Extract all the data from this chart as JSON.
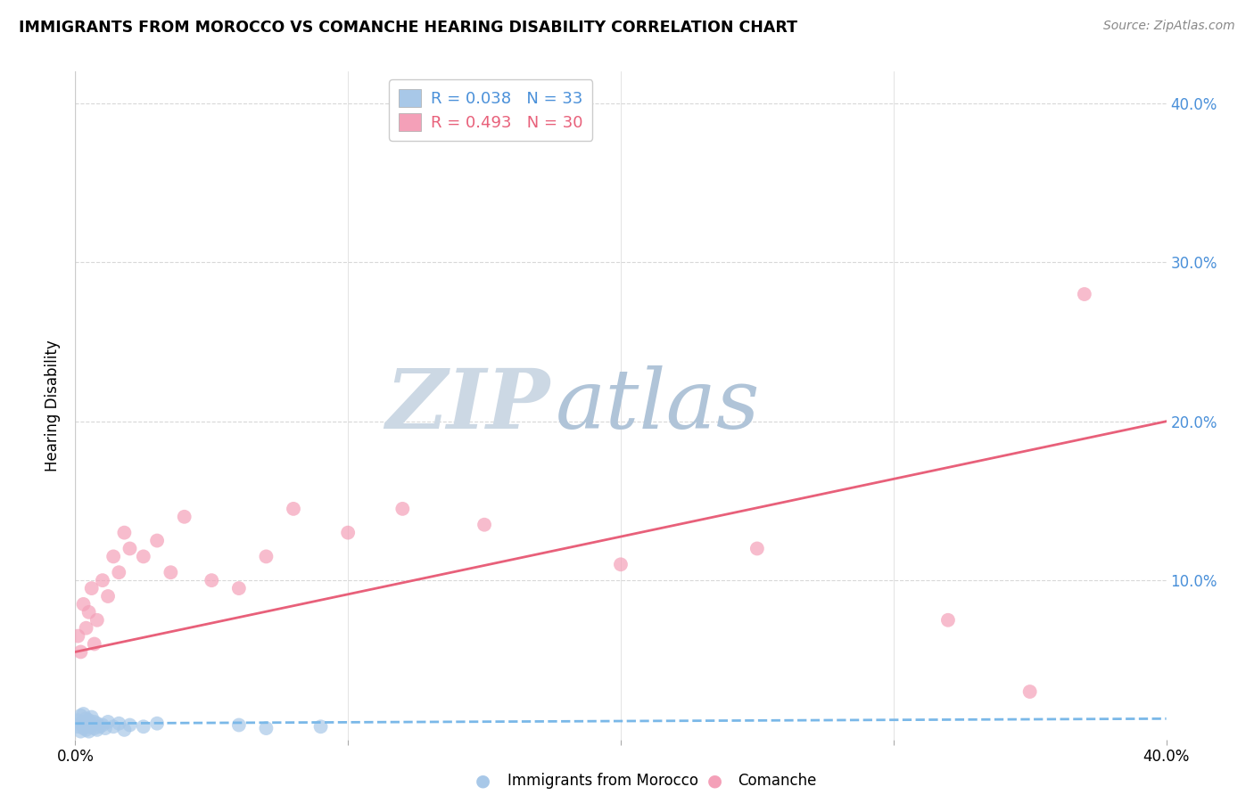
{
  "title": "IMMIGRANTS FROM MOROCCO VS COMANCHE HEARING DISABILITY CORRELATION CHART",
  "source": "Source: ZipAtlas.com",
  "ylabel": "Hearing Disability",
  "xlim": [
    0.0,
    0.4
  ],
  "ylim": [
    0.0,
    0.42
  ],
  "legend_r1": "R = 0.038",
  "legend_n1": "N = 33",
  "legend_r2": "R = 0.493",
  "legend_n2": "N = 30",
  "blue_color": "#a8c8e8",
  "pink_color": "#f4a0b8",
  "blue_line_color": "#4a90d9",
  "pink_line_color": "#e8607a",
  "blue_dashed_color": "#7ab8e8",
  "watermark_zip_color": "#c8d8e8",
  "watermark_atlas_color": "#b0c8e0",
  "blue_scatter_x": [
    0.001,
    0.001,
    0.002,
    0.002,
    0.002,
    0.003,
    0.003,
    0.003,
    0.004,
    0.004,
    0.004,
    0.005,
    0.005,
    0.005,
    0.006,
    0.006,
    0.007,
    0.007,
    0.008,
    0.008,
    0.009,
    0.01,
    0.011,
    0.012,
    0.014,
    0.016,
    0.018,
    0.02,
    0.025,
    0.03,
    0.06,
    0.07,
    0.09
  ],
  "blue_scatter_y": [
    0.008,
    0.012,
    0.005,
    0.01,
    0.015,
    0.007,
    0.011,
    0.016,
    0.006,
    0.009,
    0.013,
    0.008,
    0.012,
    0.005,
    0.009,
    0.014,
    0.007,
    0.011,
    0.006,
    0.01,
    0.008,
    0.009,
    0.007,
    0.011,
    0.008,
    0.01,
    0.006,
    0.009,
    0.008,
    0.01,
    0.009,
    0.007,
    0.008
  ],
  "pink_scatter_x": [
    0.001,
    0.002,
    0.003,
    0.004,
    0.005,
    0.006,
    0.007,
    0.008,
    0.01,
    0.012,
    0.014,
    0.016,
    0.018,
    0.02,
    0.025,
    0.03,
    0.035,
    0.04,
    0.05,
    0.06,
    0.07,
    0.08,
    0.1,
    0.12,
    0.15,
    0.2,
    0.25,
    0.32,
    0.35,
    0.37
  ],
  "pink_scatter_y": [
    0.065,
    0.055,
    0.085,
    0.07,
    0.08,
    0.095,
    0.06,
    0.075,
    0.1,
    0.09,
    0.115,
    0.105,
    0.13,
    0.12,
    0.115,
    0.125,
    0.105,
    0.14,
    0.1,
    0.095,
    0.115,
    0.145,
    0.13,
    0.145,
    0.135,
    0.11,
    0.12,
    0.075,
    0.03,
    0.28
  ],
  "blue_trend_x": [
    0.0,
    0.4
  ],
  "blue_trend_y": [
    0.01,
    0.013
  ],
  "pink_trend_x": [
    0.0,
    0.4
  ],
  "pink_trend_y": [
    0.055,
    0.2
  ],
  "ytick_positions": [
    0.1,
    0.2,
    0.3,
    0.4
  ],
  "ytick_labels": [
    "10.0%",
    "20.0%",
    "30.0%",
    "40.0%"
  ],
  "xtick_positions": [
    0.0,
    0.1,
    0.2,
    0.3,
    0.4
  ],
  "xtick_labels_show": [
    "0.0%",
    "40.0%"
  ],
  "background_color": "#ffffff",
  "grid_color": "#d8d8d8"
}
